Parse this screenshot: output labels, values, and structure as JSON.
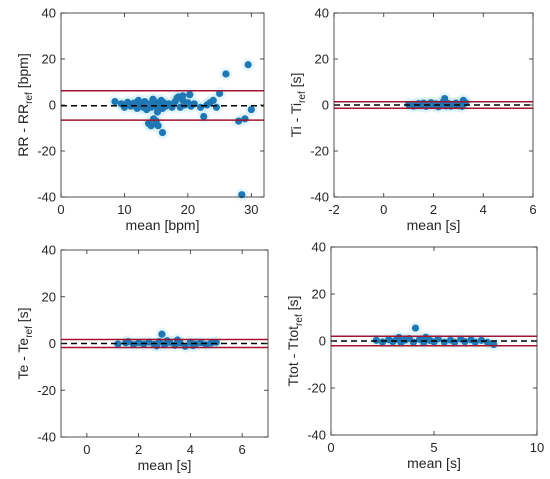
{
  "chart_data": [
    {
      "type": "scatter",
      "title": "",
      "xlabel": "mean [bpm]",
      "ylabel": {
        "main": "RR - RR",
        "sub": "ref",
        "unit": " [bpm]"
      },
      "xlim": [
        0,
        32
      ],
      "ylim": [
        -40,
        40
      ],
      "xticks": [
        0,
        10,
        20,
        30
      ],
      "yticks": [
        -40,
        -20,
        0,
        20,
        40
      ],
      "mean_line": -0.3,
      "loa_upper": 6.2,
      "loa_lower": -6.6,
      "points": [
        [
          8.5,
          1.5
        ],
        [
          9.5,
          0.5
        ],
        [
          10,
          -1
        ],
        [
          10.5,
          1.2
        ],
        [
          11,
          -0.5
        ],
        [
          11.5,
          0.8
        ],
        [
          12,
          -1.5
        ],
        [
          12.2,
          2
        ],
        [
          12.5,
          0
        ],
        [
          13,
          -1
        ],
        [
          13.2,
          1.5
        ],
        [
          13.5,
          -2
        ],
        [
          14,
          0.5
        ],
        [
          14.2,
          -1
        ],
        [
          14.5,
          2.5
        ],
        [
          14.8,
          -0.5
        ],
        [
          15,
          1
        ],
        [
          15.2,
          -3
        ],
        [
          15.5,
          0
        ],
        [
          15.8,
          2
        ],
        [
          16,
          -1.5
        ],
        [
          16.2,
          1
        ],
        [
          16.5,
          -0.5
        ],
        [
          17,
          0.5
        ],
        [
          17.5,
          -1
        ],
        [
          18,
          1.5
        ],
        [
          18.3,
          3
        ],
        [
          18.8,
          -1
        ],
        [
          19.2,
          2
        ],
        [
          19.5,
          0
        ],
        [
          20,
          1
        ],
        [
          20.5,
          -0.5
        ],
        [
          21,
          0.5
        ],
        [
          22,
          -1
        ],
        [
          23,
          0
        ],
        [
          24,
          2
        ],
        [
          24.5,
          -1
        ],
        [
          13.8,
          -8
        ],
        [
          14.6,
          -6
        ],
        [
          15.3,
          -9
        ],
        [
          16,
          -12
        ],
        [
          15,
          -7
        ],
        [
          14.2,
          -9
        ],
        [
          19.2,
          4
        ],
        [
          20.3,
          4.5
        ],
        [
          18.5,
          3.5
        ],
        [
          22.5,
          -5
        ],
        [
          25,
          5
        ],
        [
          26,
          13.5
        ],
        [
          28,
          -7
        ],
        [
          29,
          -6
        ],
        [
          29.5,
          17.5
        ],
        [
          30,
          -2
        ],
        [
          28.5,
          -39
        ],
        [
          23.5,
          1
        ]
      ]
    },
    {
      "type": "scatter",
      "title": "",
      "xlabel": "mean [s]",
      "ylabel": {
        "main": "Ti - Ti",
        "sub": "ref",
        "unit": " [s]"
      },
      "xlim": [
        -2,
        6
      ],
      "ylim": [
        -40,
        40
      ],
      "xticks": [
        -2,
        0,
        2,
        4,
        6
      ],
      "yticks": [
        -40,
        -20,
        0,
        20,
        40
      ],
      "mean_line": 0,
      "loa_upper": 1.4,
      "loa_lower": -1.4,
      "points": [
        [
          1.0,
          0.2
        ],
        [
          1.2,
          -0.5
        ],
        [
          1.4,
          0.6
        ],
        [
          1.5,
          -0.3
        ],
        [
          1.6,
          0.8
        ],
        [
          1.7,
          -0.6
        ],
        [
          1.8,
          0.3
        ],
        [
          1.9,
          1.0
        ],
        [
          2.0,
          -0.2
        ],
        [
          2.1,
          0.5
        ],
        [
          2.2,
          -0.8
        ],
        [
          2.3,
          0.4
        ],
        [
          2.4,
          1.5
        ],
        [
          2.5,
          -0.4
        ],
        [
          2.6,
          0.6
        ],
        [
          2.7,
          -0.5
        ],
        [
          2.8,
          0.2
        ],
        [
          2.9,
          0.8
        ],
        [
          3.0,
          -0.3
        ],
        [
          3.1,
          0.4
        ],
        [
          3.2,
          2.0
        ],
        [
          3.3,
          0.9
        ],
        [
          1.3,
          0.1
        ],
        [
          2.45,
          2.8
        ],
        [
          3.15,
          -0.6
        ]
      ]
    },
    {
      "type": "scatter",
      "title": "",
      "xlabel": "mean [s]",
      "ylabel": {
        "main": "Te - Te",
        "sub": "ref",
        "unit": " [s]"
      },
      "xlim": [
        -1,
        7
      ],
      "ylim": [
        -40,
        40
      ],
      "xticks": [
        0,
        2,
        4,
        6
      ],
      "yticks": [
        -40,
        -20,
        0,
        20,
        40
      ],
      "mean_line": 0,
      "loa_upper": 1.7,
      "loa_lower": -1.7,
      "points": [
        [
          1.2,
          -0.2
        ],
        [
          1.5,
          0.3
        ],
        [
          1.8,
          -0.5
        ],
        [
          2.0,
          0.4
        ],
        [
          2.2,
          -0.3
        ],
        [
          2.4,
          0.6
        ],
        [
          2.6,
          -0.4
        ],
        [
          2.8,
          0.8
        ],
        [
          2.9,
          4.0
        ],
        [
          3.0,
          -0.6
        ],
        [
          3.2,
          0.5
        ],
        [
          3.4,
          -0.8
        ],
        [
          3.6,
          0.3
        ],
        [
          3.8,
          -1.2
        ],
        [
          4.0,
          0.6
        ],
        [
          4.2,
          -0.3
        ],
        [
          4.4,
          0.4
        ],
        [
          4.6,
          -0.5
        ],
        [
          4.8,
          0.2
        ],
        [
          5.0,
          0.5
        ],
        [
          3.1,
          1.2
        ],
        [
          2.7,
          -1.0
        ],
        [
          3.5,
          1.5
        ],
        [
          4.1,
          -0.9
        ],
        [
          1.6,
          0.8
        ]
      ]
    },
    {
      "type": "scatter",
      "title": "",
      "xlabel": "mean [s]",
      "ylabel": {
        "main": "Ttot - Ttot",
        "sub": "ref",
        "unit": " [s]"
      },
      "xlim": [
        0,
        10
      ],
      "ylim": [
        -40,
        40
      ],
      "xticks": [
        0,
        5,
        10
      ],
      "yticks": [
        -40,
        -20,
        0,
        20,
        40
      ],
      "mean_line": 0,
      "loa_upper": 2.0,
      "loa_lower": -2.0,
      "points": [
        [
          2.2,
          0.3
        ],
        [
          2.5,
          -0.4
        ],
        [
          2.8,
          0.6
        ],
        [
          3.0,
          -0.3
        ],
        [
          3.2,
          0.8
        ],
        [
          3.4,
          -0.6
        ],
        [
          3.6,
          0.4
        ],
        [
          3.8,
          1.0
        ],
        [
          4.0,
          -0.5
        ],
        [
          4.1,
          5.5
        ],
        [
          4.3,
          0.7
        ],
        [
          4.5,
          -0.8
        ],
        [
          4.8,
          0.3
        ],
        [
          5.0,
          -0.4
        ],
        [
          5.2,
          0.9
        ],
        [
          5.5,
          -0.5
        ],
        [
          5.8,
          0.4
        ],
        [
          6.0,
          -0.6
        ],
        [
          6.3,
          0.8
        ],
        [
          6.5,
          -0.3
        ],
        [
          6.8,
          0.5
        ],
        [
          7.0,
          -0.5
        ],
        [
          7.3,
          0.3
        ],
        [
          7.6,
          -0.6
        ],
        [
          7.9,
          -1.5
        ],
        [
          4.6,
          1.6
        ],
        [
          3.3,
          1.5
        ]
      ]
    },
    {}
  ]
}
